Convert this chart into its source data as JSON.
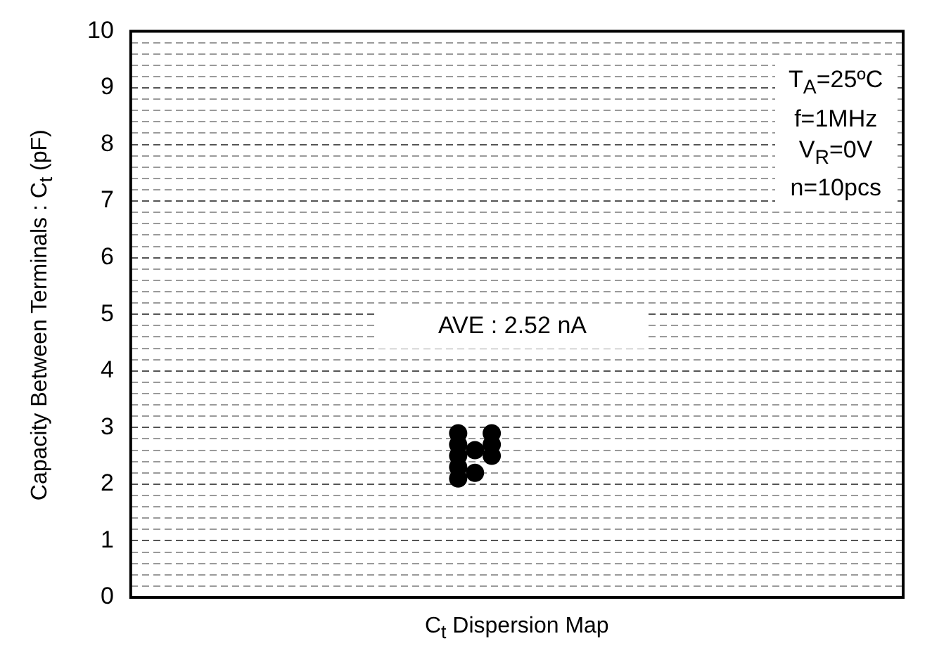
{
  "chart_data": {
    "type": "scatter",
    "xlabel": "C$_{t}$ Dispersion Map",
    "ylabel": "Capacity Between Terminals : C$_{t}$ (pF)",
    "categories": [
      null,
      null,
      null,
      null,
      null,
      null,
      null,
      null,
      null,
      null,
      null,
      null,
      null,
      null,
      null,
      null,
      null,
      null,
      null,
      null,
      null,
      null,
      null,
      null,
      null,
      null,
      null,
      null,
      null,
      null,
      null,
      null,
      null,
      null,
      null,
      null,
      null,
      null,
      null,
      null,
      null,
      null,
      null,
      null,
      null,
      null
    ],
    "series": [
      {
        "color": "#000000",
        "values": [
          null,
          null,
          null,
          null,
          null,
          null,
          null,
          null,
          null,
          null,
          null,
          null,
          null,
          null,
          null,
          null,
          null,
          null,
          null,
          2.1,
          2.2,
          2.5,
          null,
          null,
          null,
          null,
          null,
          null,
          null,
          null,
          null,
          null,
          null,
          null,
          null,
          null,
          null,
          null,
          null,
          null,
          null,
          null,
          null,
          null,
          null,
          null
        ]
      },
      {
        "color": "#000000",
        "values": [
          null,
          null,
          null,
          null,
          null,
          null,
          null,
          null,
          null,
          null,
          null,
          null,
          null,
          null,
          null,
          null,
          null,
          null,
          null,
          2.3,
          2.6,
          2.7,
          null,
          null,
          null,
          null,
          null,
          null,
          null,
          null,
          null,
          null,
          null,
          null,
          null,
          null,
          null,
          null,
          null,
          null,
          null,
          null,
          null,
          null,
          null,
          null
        ]
      },
      {
        "color": "#000000",
        "values": [
          null,
          null,
          null,
          null,
          null,
          null,
          null,
          null,
          null,
          null,
          null,
          null,
          null,
          null,
          null,
          null,
          null,
          null,
          null,
          2.5,
          null,
          2.9,
          null,
          null,
          null,
          null,
          null,
          null,
          null,
          null,
          null,
          null,
          null,
          null,
          null,
          null,
          null,
          null,
          null,
          null,
          null,
          null,
          null,
          null,
          null,
          null
        ]
      },
      {
        "color": "#000000",
        "values": [
          null,
          null,
          null,
          null,
          null,
          null,
          null,
          null,
          null,
          null,
          null,
          null,
          null,
          null,
          null,
          null,
          null,
          null,
          null,
          2.7,
          null,
          null,
          null,
          null,
          null,
          null,
          null,
          null,
          null,
          null,
          null,
          null,
          null,
          null,
          null,
          null,
          null,
          null,
          null,
          null,
          null,
          null,
          null,
          null,
          null,
          null
        ]
      },
      {
        "color": "#000000",
        "values": [
          null,
          null,
          null,
          null,
          null,
          null,
          null,
          null,
          null,
          null,
          null,
          null,
          null,
          null,
          null,
          null,
          null,
          null,
          null,
          2.9,
          null,
          null,
          null,
          null,
          null,
          null,
          null,
          null,
          null,
          null,
          null,
          null,
          null,
          null,
          null,
          null,
          null,
          null,
          null,
          null,
          null,
          null,
          null,
          null,
          null,
          null
        ]
      }
    ],
    "marker": "circle",
    "ylim": [
      0,
      10
    ],
    "yticks": [
      0,
      {
        "value": 0.2,
        "label": null
      },
      {
        "value": 0.4,
        "label": null
      },
      {
        "value": 0.6,
        "label": null
      },
      {
        "value": 0.8,
        "label": null
      },
      1,
      {
        "value": 1.2,
        "label": null
      },
      {
        "value": 1.4,
        "label": null
      },
      {
        "value": 1.6,
        "label": null
      },
      {
        "value": 1.8,
        "label": null
      },
      2,
      {
        "value": 2.2,
        "label": null
      },
      {
        "value": 2.4,
        "label": null
      },
      {
        "value": 2.6,
        "label": null
      },
      {
        "value": 2.8,
        "label": null
      },
      3,
      {
        "value": 3.2,
        "label": null
      },
      {
        "value": 3.4,
        "label": null
      },
      {
        "value": 3.6,
        "label": null
      },
      {
        "value": 3.8,
        "label": null
      },
      4,
      {
        "value": 4.2,
        "label": null
      },
      {
        "value": 4.4,
        "label": null
      },
      {
        "value": 4.6,
        "label": null
      },
      {
        "value": 4.8,
        "label": null
      },
      5,
      {
        "value": 5.2,
        "label": null
      },
      {
        "value": 5.4,
        "label": null
      },
      {
        "value": 5.6,
        "label": null
      },
      {
        "value": 5.8,
        "label": null
      },
      6,
      {
        "value": 6.2,
        "label": null
      },
      {
        "value": 6.4,
        "label": null
      },
      {
        "value": 6.6,
        "label": null
      },
      {
        "value": 6.8,
        "label": null
      },
      7,
      {
        "value": 7.2,
        "label": null
      },
      {
        "value": 7.4,
        "label": null
      },
      {
        "value": 7.6,
        "label": null
      },
      {
        "value": 7.8,
        "label": null
      },
      8,
      {
        "value": 8.2,
        "label": null
      },
      {
        "value": 8.4,
        "label": null
      },
      {
        "value": 8.6,
        "label": null
      },
      {
        "value": 8.8,
        "label": null
      },
      9,
      {
        "value": 9.2,
        "label": null
      },
      {
        "value": 9.4,
        "label": null
      },
      {
        "value": 9.6,
        "label": null
      },
      {
        "value": 9.8,
        "label": null
      },
      10
    ],
    "grid": "y",
    "tick_labels": "y",
    "annotations": [
      "T$_{A}$=25ºC",
      "f=1MHz",
      "V$_{R}$=0V",
      "n=10pcs",
      "AVE : 2.52 nA"
    ]
  }
}
